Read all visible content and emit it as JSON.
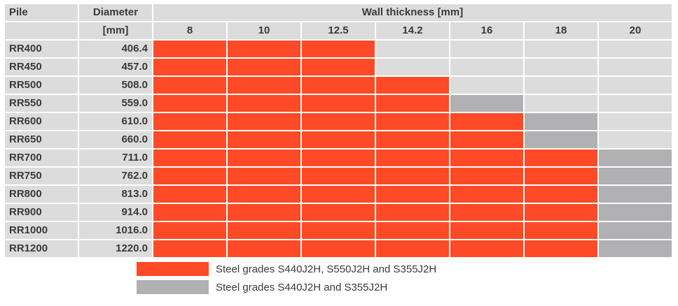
{
  "colors": {
    "red": "#fe4a26",
    "gray": "#b1b1b3",
    "header_bg": "#dcdcdc",
    "empty": "#dcdcdc"
  },
  "header": {
    "pile": "Pile",
    "diameter": "Diameter",
    "wall_thickness": "Wall thickness [mm]",
    "unit": "[mm]",
    "thicknesses": [
      "8",
      "10",
      "12.5",
      "14.2",
      "16",
      "18",
      "20"
    ]
  },
  "rows": [
    {
      "pile": "RR400",
      "diameter": "406.4",
      "cells": [
        "red",
        "red",
        "red",
        "empty",
        "empty",
        "empty",
        "empty"
      ]
    },
    {
      "pile": "RR450",
      "diameter": "457.0",
      "cells": [
        "red",
        "red",
        "red",
        "empty",
        "empty",
        "empty",
        "empty"
      ]
    },
    {
      "pile": "RR500",
      "diameter": "508.0",
      "cells": [
        "red",
        "red",
        "red",
        "red",
        "empty",
        "empty",
        "empty"
      ]
    },
    {
      "pile": "RR550",
      "diameter": "559.0",
      "cells": [
        "red",
        "red",
        "red",
        "red",
        "gray",
        "empty",
        "empty"
      ]
    },
    {
      "pile": "RR600",
      "diameter": "610.0",
      "cells": [
        "red",
        "red",
        "red",
        "red",
        "red",
        "gray",
        "empty"
      ]
    },
    {
      "pile": "RR650",
      "diameter": "660.0",
      "cells": [
        "red",
        "red",
        "red",
        "red",
        "red",
        "gray",
        "empty"
      ]
    },
    {
      "pile": "RR700",
      "diameter": "711.0",
      "cells": [
        "red",
        "red",
        "red",
        "red",
        "red",
        "red",
        "gray"
      ]
    },
    {
      "pile": "RR750",
      "diameter": "762.0",
      "cells": [
        "red",
        "red",
        "red",
        "red",
        "red",
        "red",
        "gray"
      ]
    },
    {
      "pile": "RR800",
      "diameter": "813.0",
      "cells": [
        "red",
        "red",
        "red",
        "red",
        "red",
        "red",
        "gray"
      ]
    },
    {
      "pile": "RR900",
      "diameter": "914.0",
      "cells": [
        "red",
        "red",
        "red",
        "red",
        "red",
        "red",
        "gray"
      ]
    },
    {
      "pile": "RR1000",
      "diameter": "1016.0",
      "cells": [
        "red",
        "red",
        "red",
        "red",
        "red",
        "red",
        "gray"
      ]
    },
    {
      "pile": "RR1200",
      "diameter": "1220.0",
      "cells": [
        "red",
        "red",
        "red",
        "red",
        "red",
        "red",
        "gray"
      ]
    }
  ],
  "legend": [
    {
      "key": "red",
      "label": "Steel grades S440J2H, S550J2H and S355J2H"
    },
    {
      "key": "gray",
      "label": "Steel grades  S440J2H and S355J2H"
    }
  ]
}
